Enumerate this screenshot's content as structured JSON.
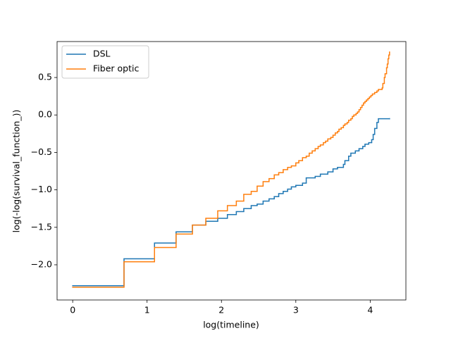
{
  "chart_data": {
    "type": "step",
    "drawstyle": "steps-post",
    "xlabel": "log(timeline)",
    "ylabel": "log(-log(survival_function_))",
    "xlim": [
      -0.21,
      4.48
    ],
    "ylim": [
      -2.47,
      0.98
    ],
    "xticks": [
      0,
      1,
      2,
      3,
      4
    ],
    "yticks": [
      {
        "value": -2.0,
        "label": "−2.0"
      },
      {
        "value": -1.5,
        "label": "−1.5"
      },
      {
        "value": -1.0,
        "label": "−1.0"
      },
      {
        "value": -0.5,
        "label": "−0.5"
      },
      {
        "value": 0.0,
        "label": "0.0"
      },
      0.5
    ],
    "legend": "upper left",
    "series": [
      {
        "name": "DSL",
        "color": "#1f77b4",
        "x": [
          0,
          0.69,
          1.1,
          1.39,
          1.61,
          1.79,
          1.95,
          2.08,
          2.2,
          2.3,
          2.4,
          2.48,
          2.56,
          2.64,
          2.71,
          2.77,
          2.83,
          2.89,
          2.94,
          3.0,
          3.09,
          3.14,
          3.26,
          3.33,
          3.43,
          3.5,
          3.56,
          3.64,
          3.66,
          3.71,
          3.74,
          3.8,
          3.85,
          3.9,
          3.93,
          3.98,
          4.02,
          4.04,
          4.06,
          4.09,
          4.11,
          4.26
        ],
        "values": [
          -2.28,
          -1.92,
          -1.71,
          -1.56,
          -1.47,
          -1.42,
          -1.38,
          -1.33,
          -1.29,
          -1.25,
          -1.21,
          -1.19,
          -1.15,
          -1.12,
          -1.09,
          -1.05,
          -1.02,
          -0.99,
          -0.96,
          -0.94,
          -0.91,
          -0.84,
          -0.82,
          -0.79,
          -0.76,
          -0.72,
          -0.7,
          -0.66,
          -0.61,
          -0.55,
          -0.51,
          -0.48,
          -0.45,
          -0.42,
          -0.39,
          -0.37,
          -0.33,
          -0.26,
          -0.18,
          -0.1,
          -0.05,
          -0.05
        ]
      },
      {
        "name": "Fiber optic",
        "color": "#ff7f0e",
        "x": [
          0,
          0.69,
          1.1,
          1.39,
          1.61,
          1.79,
          1.95,
          2.08,
          2.2,
          2.3,
          2.4,
          2.48,
          2.56,
          2.64,
          2.71,
          2.77,
          2.83,
          2.89,
          2.94,
          3.0,
          3.04,
          3.09,
          3.14,
          3.18,
          3.22,
          3.26,
          3.3,
          3.33,
          3.37,
          3.4,
          3.43,
          3.47,
          3.5,
          3.53,
          3.56,
          3.58,
          3.61,
          3.64,
          3.66,
          3.69,
          3.71,
          3.74,
          3.76,
          3.78,
          3.81,
          3.83,
          3.85,
          3.87,
          3.89,
          3.91,
          3.93,
          3.95,
          3.97,
          3.99,
          4.01,
          4.03,
          4.06,
          4.09,
          4.11,
          4.16,
          4.17,
          4.19,
          4.2,
          4.22,
          4.23,
          4.24,
          4.25,
          4.26
        ],
        "values": [
          -2.3,
          -1.96,
          -1.77,
          -1.59,
          -1.47,
          -1.38,
          -1.28,
          -1.21,
          -1.15,
          -1.06,
          -1.02,
          -0.95,
          -0.89,
          -0.85,
          -0.8,
          -0.77,
          -0.73,
          -0.7,
          -0.68,
          -0.64,
          -0.61,
          -0.57,
          -0.55,
          -0.51,
          -0.48,
          -0.45,
          -0.42,
          -0.4,
          -0.37,
          -0.35,
          -0.32,
          -0.3,
          -0.27,
          -0.24,
          -0.22,
          -0.19,
          -0.17,
          -0.14,
          -0.12,
          -0.1,
          -0.07,
          -0.05,
          -0.02,
          0.0,
          0.02,
          0.04,
          0.07,
          0.1,
          0.13,
          0.16,
          0.18,
          0.2,
          0.22,
          0.24,
          0.26,
          0.28,
          0.3,
          0.32,
          0.34,
          0.36,
          0.42,
          0.5,
          0.55,
          0.63,
          0.68,
          0.75,
          0.8,
          0.84
        ]
      }
    ]
  }
}
